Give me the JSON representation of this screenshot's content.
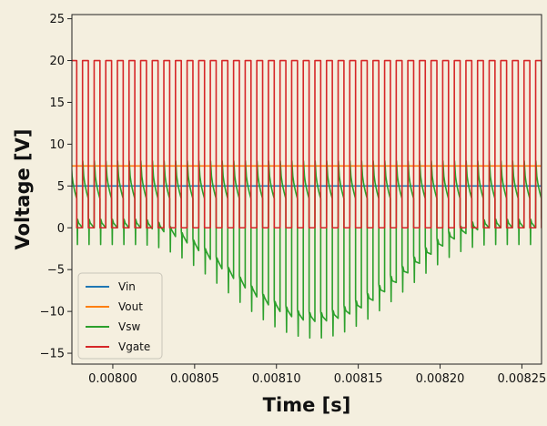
{
  "chart_data": {
    "type": "line",
    "xlabel": "Time [s]",
    "ylabel": "Voltage [V]",
    "xlim": [
      0.007975,
      0.008262
    ],
    "ylim": [
      -16.3,
      25.5
    ],
    "xticks": [
      {
        "value": 0.008,
        "label": "0.00800"
      },
      {
        "value": 0.00805,
        "label": "0.00805"
      },
      {
        "value": 0.0081,
        "label": "0.00810"
      },
      {
        "value": 0.00815,
        "label": "0.00815"
      },
      {
        "value": 0.0082,
        "label": "0.00820"
      },
      {
        "value": 0.00825,
        "label": "0.00825"
      }
    ],
    "yticks": [
      {
        "value": -15,
        "label": "−15"
      },
      {
        "value": -10,
        "label": "−10"
      },
      {
        "value": -5,
        "label": "−5"
      },
      {
        "value": 0,
        "label": "0"
      },
      {
        "value": 5,
        "label": "5"
      },
      {
        "value": 10,
        "label": "10"
      },
      {
        "value": 15,
        "label": "15"
      },
      {
        "value": 20,
        "label": "20"
      },
      {
        "value": 25,
        "label": "25"
      }
    ],
    "grid": false,
    "legend_position": "lower-left",
    "series": [
      {
        "name": "Vin",
        "color": "#1f77b4",
        "kind": "constant",
        "level": 5.0
      },
      {
        "name": "Vout",
        "color": "#ff7f0e",
        "kind": "constant",
        "level": 7.4
      },
      {
        "name": "Vsw",
        "color": "#2ca02c",
        "kind": "switch_node",
        "period": 7.1e-06,
        "phase": 1.1e-06,
        "high": 8.0,
        "low_start": 1.2,
        "envelope_center": 0.008125,
        "envelope_halfwidth": 0.000108,
        "envelope_depth": -11.2
      },
      {
        "name": "Vgate",
        "color": "#d62728",
        "kind": "pwm",
        "period": 7.1e-06,
        "phase": 1.1e-06,
        "duty": 0.5,
        "high": 20.0,
        "low": 0.0
      }
    ]
  }
}
